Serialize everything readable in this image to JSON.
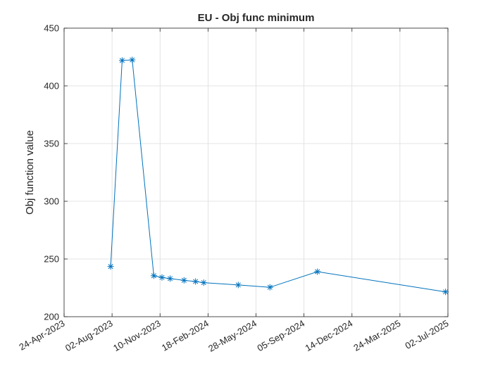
{
  "chart_data": {
    "type": "line",
    "title": "EU - Obj func minimum",
    "xlabel": "",
    "ylabel": "Obj function value",
    "xlim": [
      "2023-04-24",
      "2025-07-02"
    ],
    "ylim": [
      200,
      450
    ],
    "grid": true,
    "x_ticks": [
      "24-Apr-2023",
      "02-Aug-2023",
      "10-Nov-2023",
      "18-Feb-2024",
      "28-May-2024",
      "05-Sep-2024",
      "14-Dec-2024",
      "24-Mar-2025",
      "02-Jul-2025"
    ],
    "y_ticks": [
      "200",
      "250",
      "300",
      "350",
      "400",
      "450"
    ],
    "series": [
      {
        "name": "",
        "color": "#0072BD",
        "marker": "asterisk",
        "x": [
          "2023-07-30",
          "2023-08-23",
          "2023-09-13",
          "2023-10-28",
          "2023-11-14",
          "2023-12-01",
          "2023-12-30",
          "2024-01-23",
          "2024-02-09",
          "2024-04-21",
          "2024-06-26",
          "2024-10-03",
          "2025-06-27"
        ],
        "y": [
          243.5,
          422,
          422.5,
          235.5,
          234,
          233,
          231.5,
          230.5,
          229.5,
          227.5,
          225.5,
          239,
          221.5
        ]
      }
    ]
  }
}
